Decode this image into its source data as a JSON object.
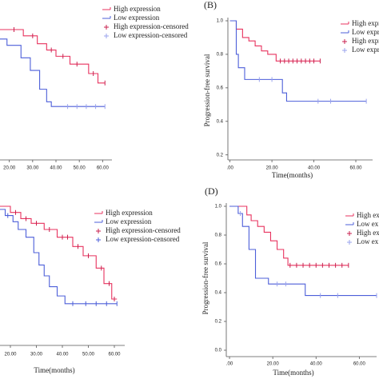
{
  "chart_data": [
    {
      "type": "step",
      "x_label": null,
      "xlim": [
        16,
        64
      ],
      "ylim": [
        0.17,
        1.0
      ],
      "xticks": [
        {
          "value": 20,
          "label": "20.00"
        },
        {
          "value": 30,
          "label": "30.00"
        },
        {
          "value": 40,
          "label": "40.00"
        },
        {
          "value": 50,
          "label": "50.00"
        },
        {
          "value": 60,
          "label": "60.00"
        }
      ],
      "series": [
        {
          "name": "High expression",
          "color": "#e8335f",
          "style": "line",
          "x": [
            16,
            26,
            32,
            36,
            40,
            46,
            54,
            58,
            61
          ],
          "values": [
            1.0,
            0.96,
            0.91,
            0.87,
            0.83,
            0.78,
            0.72,
            0.66,
            0.66
          ]
        },
        {
          "name": "Low expression",
          "color": "#4d5fd9",
          "style": "line",
          "x": [
            16,
            19,
            25,
            29,
            33,
            36,
            38,
            61
          ],
          "values": [
            0.94,
            0.9,
            0.82,
            0.74,
            0.62,
            0.54,
            0.51,
            0.51
          ]
        },
        {
          "name": "High expression-censored",
          "color": "#c8204f",
          "style": "censor",
          "x": [
            22,
            30,
            38,
            43,
            49,
            56,
            61
          ],
          "values": [
            1.0,
            0.96,
            0.87,
            0.83,
            0.78,
            0.72,
            0.66
          ]
        },
        {
          "name": "Low expression-censored",
          "color": "#9aa3ee",
          "style": "censor",
          "x": [
            45,
            49,
            53,
            57,
            61
          ],
          "values": [
            0.51,
            0.51,
            0.51,
            0.51,
            0.51
          ]
        }
      ]
    },
    {
      "type": "step",
      "panel_label": "(B)",
      "x_label": "Time(months)",
      "y_label": "Progression-free survival",
      "xlim": [
        -1,
        68
      ],
      "ylim": [
        0.17,
        1.0
      ],
      "xticks": [
        {
          "value": 0,
          "label": ".00"
        },
        {
          "value": 20,
          "label": "20.00"
        },
        {
          "value": 40,
          "label": "40.00"
        },
        {
          "value": 60,
          "label": "60.00"
        }
      ],
      "yticks": [
        {
          "value": 1.0,
          "label": "1.0"
        },
        {
          "value": 0.8,
          "label": "0.8"
        },
        {
          "value": 0.6,
          "label": "0.6"
        },
        {
          "value": 0.4,
          "label": "0.4"
        },
        {
          "value": 0.2,
          "label": "0.2"
        }
      ],
      "series": [
        {
          "name": "High expre",
          "color": "#e8335f",
          "style": "line",
          "x": [
            0,
            3,
            6,
            9,
            12,
            15,
            18,
            22,
            43
          ],
          "values": [
            1.0,
            0.95,
            0.9,
            0.88,
            0.85,
            0.82,
            0.8,
            0.76,
            0.76
          ]
        },
        {
          "name": "Low expre",
          "color": "#4d5fd9",
          "style": "line",
          "x": [
            0,
            3,
            4,
            7,
            25,
            27,
            65
          ],
          "values": [
            1.0,
            0.8,
            0.72,
            0.65,
            0.57,
            0.52,
            0.52
          ]
        },
        {
          "name": "High expre",
          "color": "#c8204f",
          "style": "censor",
          "x": [
            24,
            26,
            28,
            30,
            32,
            34,
            36,
            38,
            40,
            43
          ],
          "values": [
            0.76,
            0.76,
            0.76,
            0.76,
            0.76,
            0.76,
            0.76,
            0.76,
            0.76,
            0.76
          ]
        },
        {
          "name": "Low expre",
          "color": "#9aa3ee",
          "style": "censor",
          "x": [
            14,
            20,
            42,
            48,
            65
          ],
          "values": [
            0.65,
            0.65,
            0.52,
            0.52,
            0.52
          ]
        }
      ]
    },
    {
      "type": "step",
      "x_label": "Time(months)",
      "xlim": [
        16,
        64
      ],
      "ylim": [
        0.1,
        1.0
      ],
      "xticks": [
        {
          "value": 20,
          "label": "20.00"
        },
        {
          "value": 30,
          "label": "30.00"
        },
        {
          "value": 40,
          "label": "40.00"
        },
        {
          "value": 50,
          "label": "50.00"
        },
        {
          "value": 60,
          "label": "60.00"
        }
      ],
      "series": [
        {
          "name": "High expression",
          "color": "#e8335f",
          "style": "line",
          "x": [
            16,
            20,
            24,
            28,
            33,
            38,
            44,
            48,
            53,
            56,
            59,
            61
          ],
          "values": [
            1.0,
            0.96,
            0.92,
            0.89,
            0.85,
            0.8,
            0.74,
            0.68,
            0.6,
            0.5,
            0.4,
            0.4
          ]
        },
        {
          "name": "Low expression",
          "color": "#4d5fd9",
          "style": "line",
          "x": [
            16,
            18,
            21,
            23,
            26,
            29,
            31,
            33,
            35,
            38,
            41,
            61
          ],
          "values": [
            0.98,
            0.94,
            0.9,
            0.85,
            0.8,
            0.7,
            0.62,
            0.55,
            0.48,
            0.42,
            0.37,
            0.37
          ]
        },
        {
          "name": "High expression-censored",
          "color": "#c8204f",
          "style": "censor",
          "x": [
            22,
            26,
            30,
            35,
            40,
            42,
            46,
            50,
            55,
            58,
            60
          ],
          "values": [
            0.96,
            0.92,
            0.89,
            0.85,
            0.8,
            0.8,
            0.74,
            0.68,
            0.6,
            0.5,
            0.4
          ]
        },
        {
          "name": "Low expression-censored",
          "color": "#4d5fd9",
          "style": "censor",
          "x": [
            19,
            44,
            49,
            53,
            57,
            61
          ],
          "values": [
            0.94,
            0.37,
            0.37,
            0.37,
            0.37,
            0.37
          ]
        }
      ]
    },
    {
      "type": "step",
      "panel_label": "(D)",
      "x_label": "Time(months)",
      "y_label": "Progression-free survival",
      "xlim": [
        -1.5,
        68
      ],
      "ylim": [
        0,
        1.0
      ],
      "xticks": [
        {
          "value": 0,
          "label": ".00"
        },
        {
          "value": 20,
          "label": "20.00"
        },
        {
          "value": 40,
          "label": "40.00"
        },
        {
          "value": 60,
          "label": "60.00"
        }
      ],
      "yticks": [
        {
          "value": 1.0,
          "label": "1.0"
        },
        {
          "value": 0.8,
          "label": "0.8"
        },
        {
          "value": 0.6,
          "label": "0.6"
        },
        {
          "value": 0.4,
          "label": "0.4"
        },
        {
          "value": 0.2,
          "label": "0.2"
        },
        {
          "value": 0,
          "label": "0.0"
        }
      ],
      "series": [
        {
          "name": "High ex",
          "color": "#e8335f",
          "style": "line",
          "x": [
            0,
            8,
            10,
            13,
            16,
            19,
            22,
            25,
            27,
            55
          ],
          "values": [
            1.0,
            0.94,
            0.9,
            0.86,
            0.82,
            0.76,
            0.7,
            0.64,
            0.59,
            0.59
          ]
        },
        {
          "name": "Low ex",
          "color": "#4d5fd9",
          "style": "line",
          "x": [
            0,
            4,
            6,
            9,
            12,
            18,
            35,
            68
          ],
          "values": [
            1.0,
            0.95,
            0.86,
            0.7,
            0.5,
            0.46,
            0.38,
            0.38
          ]
        },
        {
          "name": "High ex",
          "color": "#c8204f",
          "style": "censor",
          "x": [
            28,
            31,
            34,
            37,
            40,
            43,
            46,
            49,
            52,
            55
          ],
          "values": [
            0.59,
            0.59,
            0.59,
            0.59,
            0.59,
            0.59,
            0.59,
            0.59,
            0.59,
            0.59
          ]
        },
        {
          "name": "Low ex",
          "color": "#9aa3ee",
          "style": "censor",
          "x": [
            5,
            22,
            26,
            42,
            50,
            68
          ],
          "values": [
            0.95,
            0.46,
            0.46,
            0.38,
            0.38,
            0.38
          ]
        }
      ]
    }
  ]
}
